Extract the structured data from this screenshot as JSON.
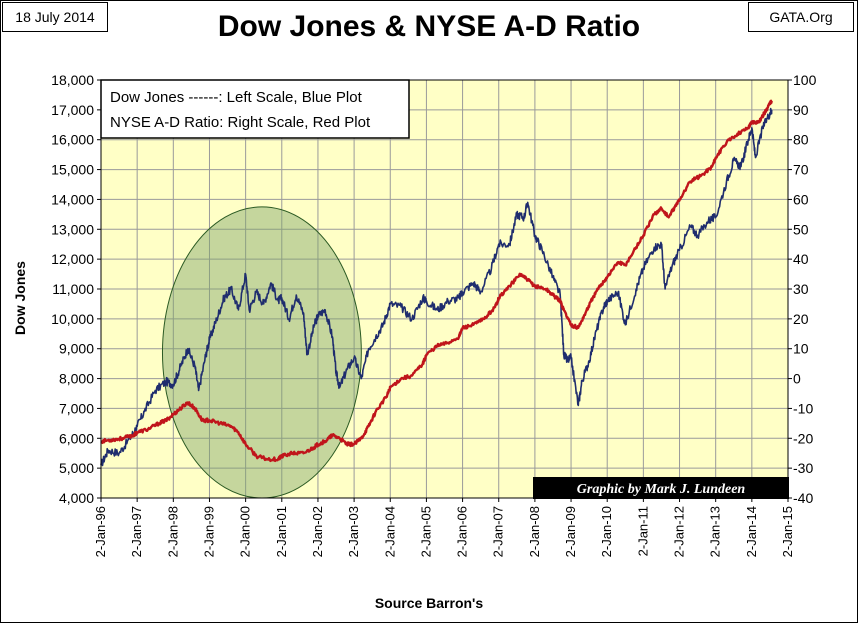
{
  "header": {
    "date": "18 July 2014",
    "source_tag": "GATA.Org"
  },
  "colors": {
    "plot_background": "#ffffc6",
    "gridline": "#9a9a9a",
    "dow_line": "#1f2d6e",
    "ad_line": "#c0151b",
    "highlight_ellipse_fill": "#7fa36a",
    "credit_background": "#000000"
  },
  "chart_data": {
    "type": "line",
    "title": "Dow Jones & NYSE A-D Ratio",
    "xlabel": "Source Barron's",
    "ylabel": "Dow Jones",
    "x_categories": [
      "2-Jan-96",
      "2-Jan-97",
      "2-Jan-98",
      "2-Jan-99",
      "2-Jan-00",
      "2-Jan-01",
      "2-Jan-02",
      "2-Jan-03",
      "2-Jan-04",
      "2-Jan-05",
      "2-Jan-06",
      "2-Jan-07",
      "2-Jan-08",
      "2-Jan-09",
      "2-Jan-10",
      "2-Jan-11",
      "2-Jan-12",
      "2-Jan-13",
      "2-Jan-14",
      "2-Jan-15"
    ],
    "y_left": {
      "min": 4000,
      "max": 18000,
      "step": 1000,
      "tick_labels": [
        "4,000",
        "5,000",
        "6,000",
        "7,000",
        "8,000",
        "9,000",
        "10,000",
        "11,000",
        "12,000",
        "13,000",
        "14,000",
        "15,000",
        "16,000",
        "17,000",
        "18,000"
      ]
    },
    "y_right": {
      "min": -40,
      "max": 100,
      "step": 10,
      "tick_labels": [
        "-40",
        "-30",
        "-20",
        "-10",
        "0",
        "10",
        "20",
        "30",
        "40",
        "50",
        "60",
        "70",
        "80",
        "90",
        "100"
      ]
    },
    "legend": {
      "position": "top-left",
      "lines": [
        "Dow Jones ------: Left Scale, Blue Plot",
        "NYSE A-D Ratio:  Right Scale, Red Plot"
      ]
    },
    "annotation": {
      "text": "Graphic by Mark J. Lundeen",
      "position": "bottom-right"
    },
    "highlight": {
      "shape": "ellipse",
      "x_from": 1997.7,
      "x_to": 2003.2,
      "y_from": 4000,
      "y_to": 13750
    },
    "series": [
      {
        "name": "Dow Jones",
        "axis": "left",
        "points": [
          [
            1996.0,
            5100
          ],
          [
            1996.2,
            5600
          ],
          [
            1996.5,
            5500
          ],
          [
            1996.8,
            6000
          ],
          [
            1997.0,
            6400
          ],
          [
            1997.2,
            6900
          ],
          [
            1997.5,
            7600
          ],
          [
            1997.8,
            7900
          ],
          [
            1998.0,
            7800
          ],
          [
            1998.2,
            8400
          ],
          [
            1998.4,
            9000
          ],
          [
            1998.6,
            8400
          ],
          [
            1998.7,
            7600
          ],
          [
            1998.9,
            8800
          ],
          [
            1999.0,
            9300
          ],
          [
            1999.2,
            10000
          ],
          [
            1999.4,
            10700
          ],
          [
            1999.6,
            11000
          ],
          [
            1999.8,
            10300
          ],
          [
            2000.0,
            11500
          ],
          [
            2000.1,
            10300
          ],
          [
            2000.3,
            10900
          ],
          [
            2000.5,
            10500
          ],
          [
            2000.7,
            11200
          ],
          [
            2000.9,
            10600
          ],
          [
            2001.0,
            10700
          ],
          [
            2001.2,
            10000
          ],
          [
            2001.4,
            10800
          ],
          [
            2001.6,
            10200
          ],
          [
            2001.7,
            8800
          ],
          [
            2001.9,
            9800
          ],
          [
            2002.0,
            10100
          ],
          [
            2002.2,
            10300
          ],
          [
            2002.4,
            9400
          ],
          [
            2002.5,
            8200
          ],
          [
            2002.6,
            7700
          ],
          [
            2002.8,
            8300
          ],
          [
            2003.0,
            8700
          ],
          [
            2003.2,
            8000
          ],
          [
            2003.4,
            9000
          ],
          [
            2003.6,
            9400
          ],
          [
            2003.8,
            9800
          ],
          [
            2004.0,
            10500
          ],
          [
            2004.3,
            10400
          ],
          [
            2004.6,
            10000
          ],
          [
            2004.9,
            10700
          ],
          [
            2005.0,
            10600
          ],
          [
            2005.3,
            10300
          ],
          [
            2005.6,
            10600
          ],
          [
            2005.9,
            10700
          ],
          [
            2006.0,
            10900
          ],
          [
            2006.3,
            11200
          ],
          [
            2006.5,
            10900
          ],
          [
            2006.8,
            11700
          ],
          [
            2007.0,
            12500
          ],
          [
            2007.3,
            12500
          ],
          [
            2007.5,
            13500
          ],
          [
            2007.7,
            13400
          ],
          [
            2007.8,
            13900
          ],
          [
            2008.0,
            12800
          ],
          [
            2008.2,
            12300
          ],
          [
            2008.5,
            11400
          ],
          [
            2008.7,
            10800
          ],
          [
            2008.8,
            8800
          ],
          [
            2008.9,
            8600
          ],
          [
            2009.0,
            8700
          ],
          [
            2009.2,
            7100
          ],
          [
            2009.3,
            7900
          ],
          [
            2009.5,
            8600
          ],
          [
            2009.7,
            9600
          ],
          [
            2009.9,
            10400
          ],
          [
            2010.0,
            10600
          ],
          [
            2010.3,
            10900
          ],
          [
            2010.5,
            9800
          ],
          [
            2010.8,
            11000
          ],
          [
            2011.0,
            11700
          ],
          [
            2011.3,
            12400
          ],
          [
            2011.5,
            12500
          ],
          [
            2011.6,
            11000
          ],
          [
            2011.8,
            11800
          ],
          [
            2012.0,
            12300
          ],
          [
            2012.3,
            13100
          ],
          [
            2012.5,
            12800
          ],
          [
            2012.8,
            13300
          ],
          [
            2013.0,
            13400
          ],
          [
            2013.3,
            14600
          ],
          [
            2013.5,
            15300
          ],
          [
            2013.7,
            15100
          ],
          [
            2013.9,
            16000
          ],
          [
            2014.0,
            16400
          ],
          [
            2014.1,
            15400
          ],
          [
            2014.3,
            16400
          ],
          [
            2014.5,
            16900
          ],
          [
            2014.55,
            17000
          ]
        ]
      },
      {
        "name": "NYSE A-D Ratio",
        "axis": "right",
        "points": [
          [
            1996.0,
            -21
          ],
          [
            1996.3,
            -20.5
          ],
          [
            1996.6,
            -20
          ],
          [
            1996.9,
            -19
          ],
          [
            1997.0,
            -18
          ],
          [
            1997.3,
            -17
          ],
          [
            1997.6,
            -15
          ],
          [
            1997.8,
            -14
          ],
          [
            1998.0,
            -12
          ],
          [
            1998.2,
            -10
          ],
          [
            1998.4,
            -8
          ],
          [
            1998.6,
            -10
          ],
          [
            1998.8,
            -14
          ],
          [
            1999.0,
            -14
          ],
          [
            1999.3,
            -15
          ],
          [
            1999.6,
            -16
          ],
          [
            1999.8,
            -18
          ],
          [
            2000.0,
            -22
          ],
          [
            2000.3,
            -26
          ],
          [
            2000.6,
            -27
          ],
          [
            2000.9,
            -27
          ],
          [
            2001.0,
            -26
          ],
          [
            2001.3,
            -25
          ],
          [
            2001.6,
            -25
          ],
          [
            2001.9,
            -23
          ],
          [
            2002.0,
            -22
          ],
          [
            2002.2,
            -21
          ],
          [
            2002.4,
            -19
          ],
          [
            2002.6,
            -20
          ],
          [
            2002.8,
            -22
          ],
          [
            2003.0,
            -22
          ],
          [
            2003.2,
            -20
          ],
          [
            2003.4,
            -16
          ],
          [
            2003.6,
            -11
          ],
          [
            2003.9,
            -6
          ],
          [
            2004.0,
            -3
          ],
          [
            2004.3,
            0
          ],
          [
            2004.6,
            1
          ],
          [
            2004.9,
            5
          ],
          [
            2005.0,
            8
          ],
          [
            2005.3,
            11
          ],
          [
            2005.6,
            12
          ],
          [
            2005.9,
            14
          ],
          [
            2006.0,
            17
          ],
          [
            2006.3,
            18
          ],
          [
            2006.6,
            20
          ],
          [
            2006.9,
            24
          ],
          [
            2007.0,
            27
          ],
          [
            2007.3,
            31
          ],
          [
            2007.6,
            35
          ],
          [
            2007.8,
            33
          ],
          [
            2008.0,
            31
          ],
          [
            2008.3,
            30
          ],
          [
            2008.5,
            28
          ],
          [
            2008.7,
            26
          ],
          [
            2008.8,
            23
          ],
          [
            2009.0,
            18
          ],
          [
            2009.2,
            17
          ],
          [
            2009.4,
            22
          ],
          [
            2009.6,
            27
          ],
          [
            2009.8,
            31
          ],
          [
            2010.0,
            34
          ],
          [
            2010.3,
            39
          ],
          [
            2010.5,
            38
          ],
          [
            2010.8,
            44
          ],
          [
            2011.0,
            48
          ],
          [
            2011.3,
            55
          ],
          [
            2011.5,
            57
          ],
          [
            2011.7,
            54
          ],
          [
            2011.9,
            58
          ],
          [
            2012.0,
            60
          ],
          [
            2012.3,
            66
          ],
          [
            2012.6,
            68
          ],
          [
            2012.9,
            71
          ],
          [
            2013.0,
            74
          ],
          [
            2013.3,
            79
          ],
          [
            2013.6,
            82
          ],
          [
            2013.9,
            84
          ],
          [
            2014.0,
            86
          ],
          [
            2014.2,
            86
          ],
          [
            2014.4,
            90
          ],
          [
            2014.55,
            93
          ]
        ]
      }
    ]
  }
}
